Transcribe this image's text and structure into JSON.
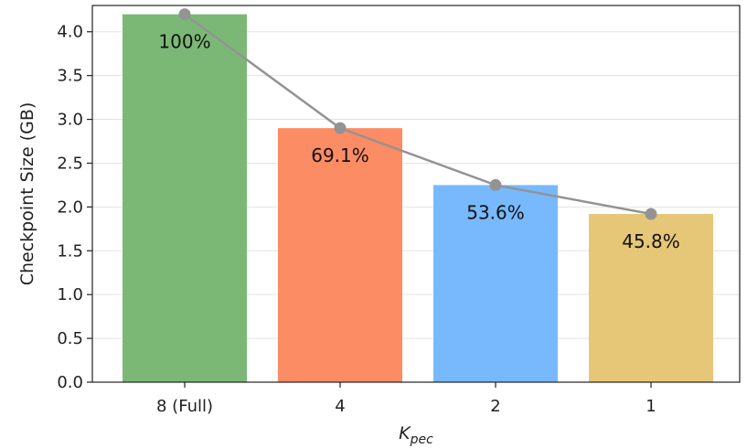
{
  "chart_data": {
    "type": "bar",
    "categories": [
      "8 (Full)",
      "4",
      "2",
      "1"
    ],
    "values": [
      4.2,
      2.9,
      2.25,
      1.92
    ],
    "data_labels": [
      "100%",
      "69.1%",
      "53.6%",
      "45.8%"
    ],
    "bar_colors": [
      "#7bb876",
      "#fc8c63",
      "#77b9fc",
      "#e6c677"
    ],
    "line_color": "#939393",
    "title": "",
    "xlabel_main": "K",
    "xlabel_sub": "pec",
    "ylabel": "Checkpoint Size (GB)",
    "ylim": [
      0,
      4.3
    ],
    "yticks": [
      "0.0",
      "0.5",
      "1.0",
      "1.5",
      "2.0",
      "2.5",
      "3.0",
      "3.5",
      "4.0"
    ],
    "grid": "horizontal",
    "line_overlay": true
  }
}
